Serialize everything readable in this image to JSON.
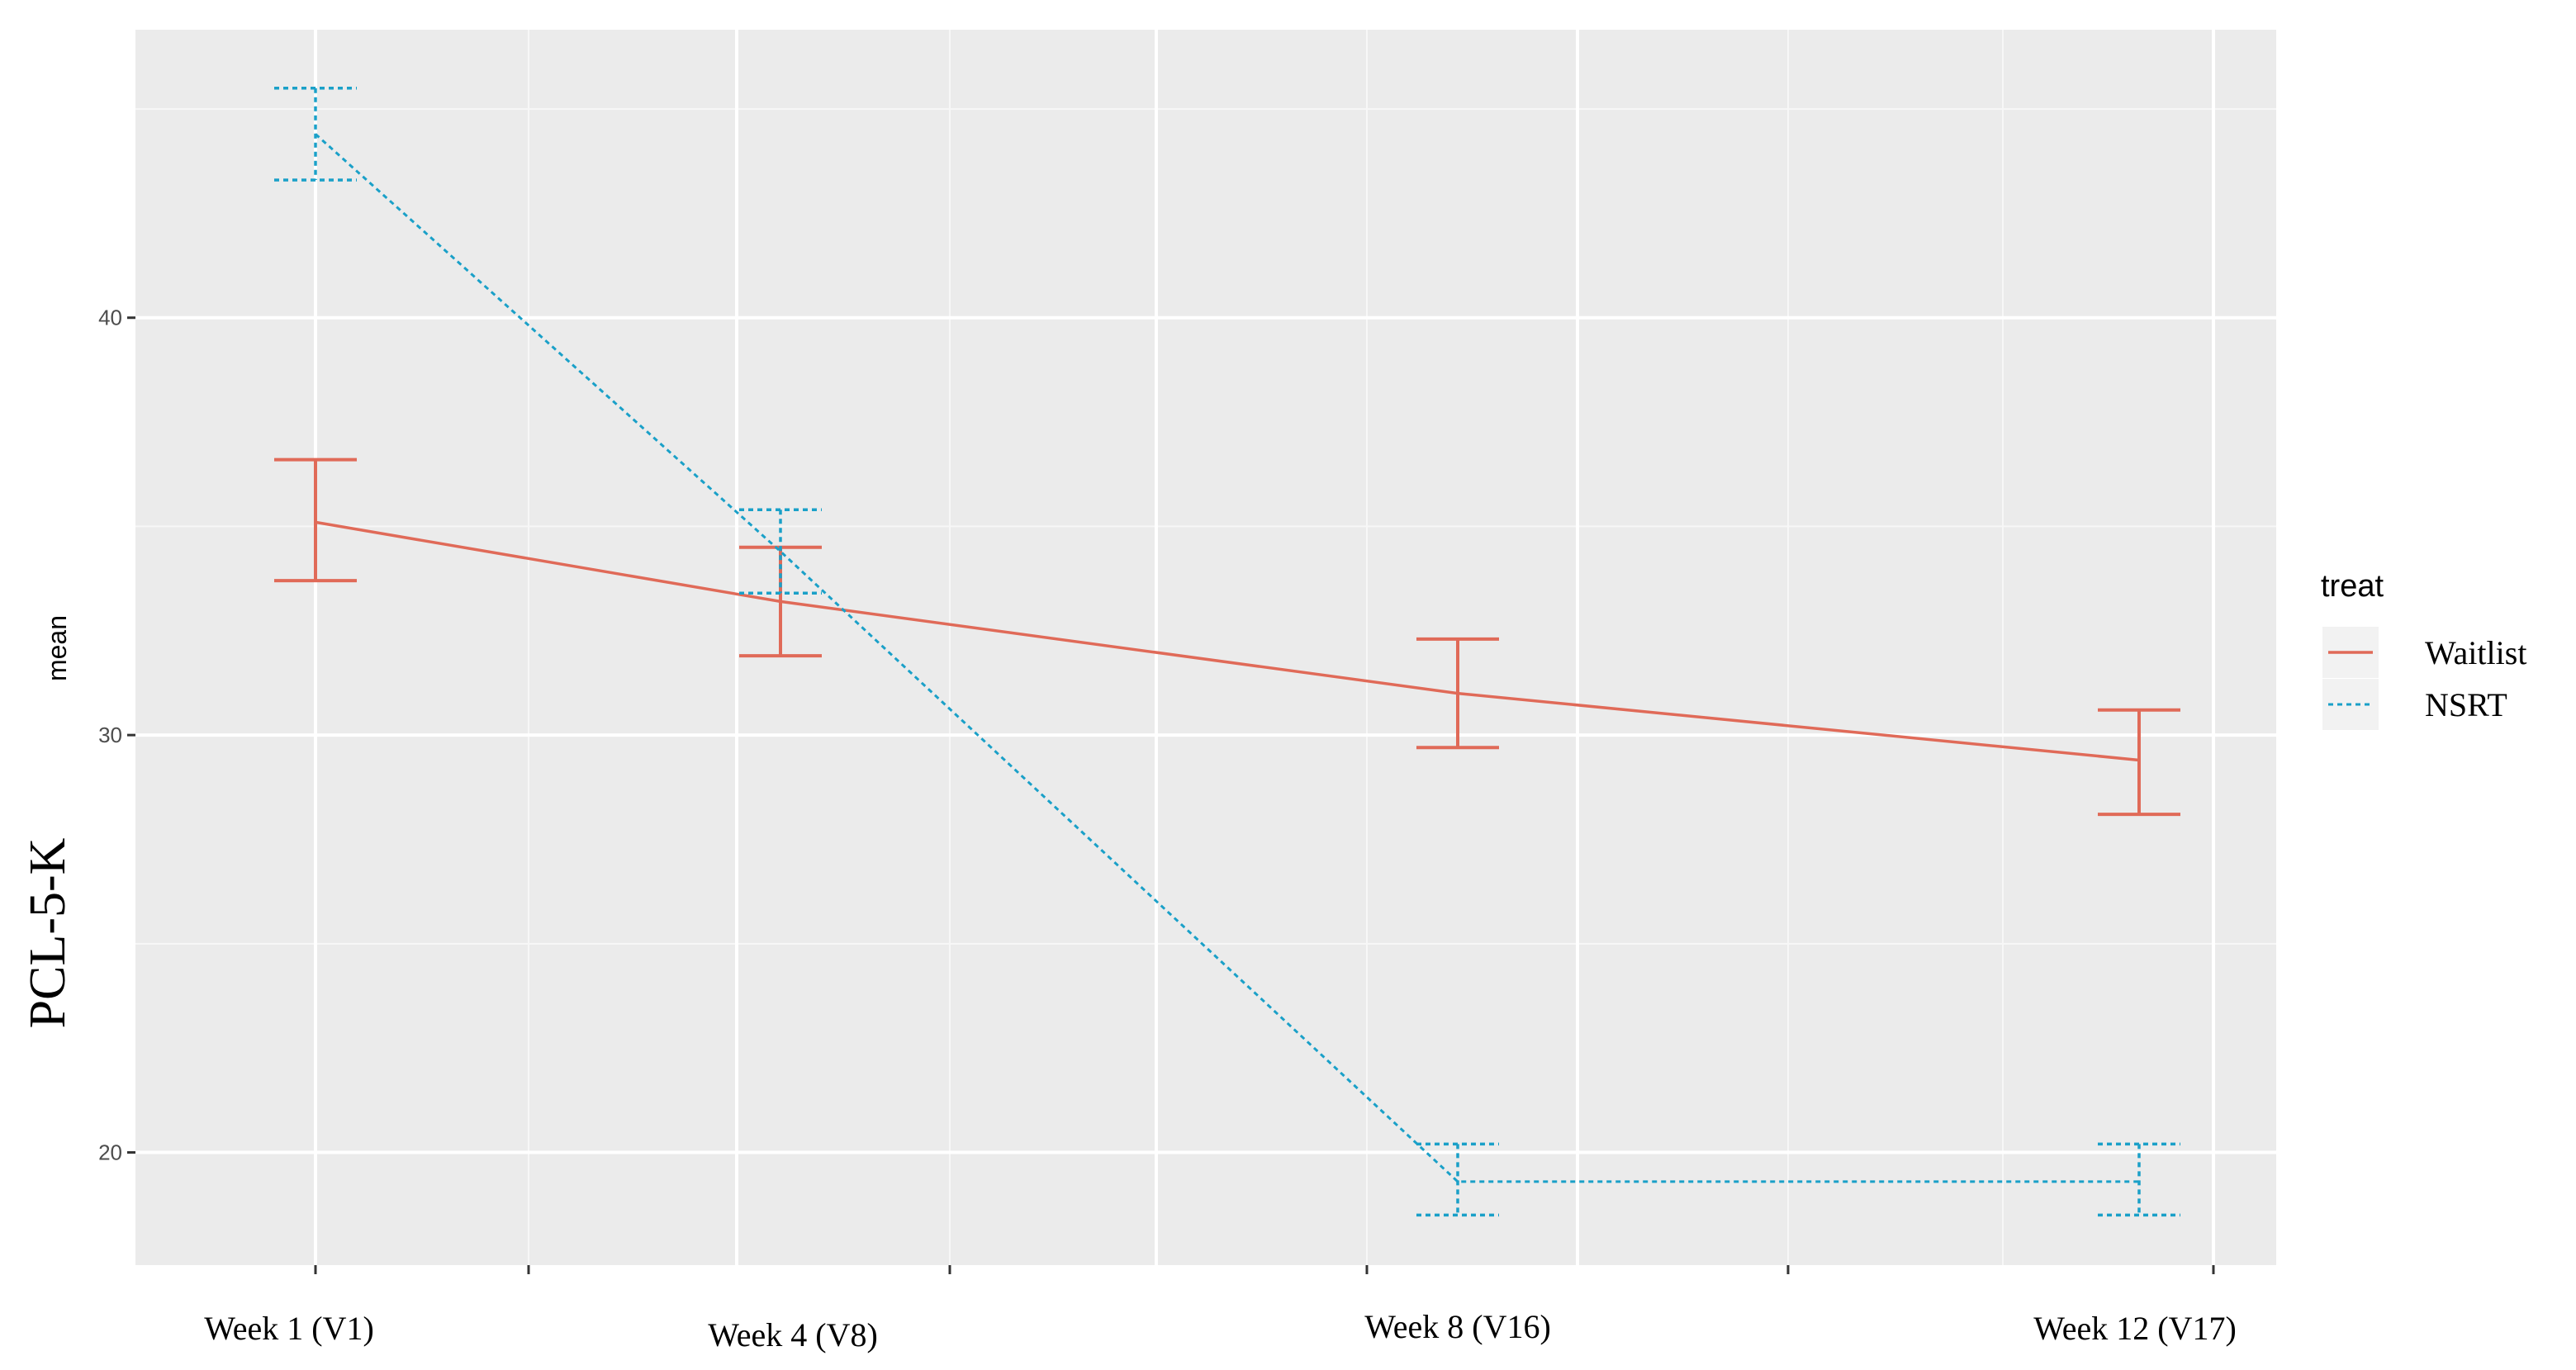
{
  "chart_data": {
    "type": "line",
    "categories": [
      "Week 1 (V1)",
      "Week 4 (V8)",
      "Week 8  (V16)",
      "Week 12 (V17)"
    ],
    "xlabel": "",
    "ylabel": "mean",
    "ylabel_overlay": "PCL-5-K",
    "ylim": [
      17.3,
      46.9
    ],
    "yticks": [
      20,
      30,
      40
    ],
    "grid": true,
    "legend": {
      "title": "treat",
      "position": "right",
      "entries": [
        "Waitlist",
        "NSRT"
      ]
    },
    "series": [
      {
        "name": "Waitlist",
        "color": "#e06a58",
        "dash": "solid",
        "values": [
          35.1,
          33.2,
          31.0,
          29.4
        ],
        "lower": [
          33.7,
          31.9,
          29.7,
          28.1
        ],
        "upper": [
          36.6,
          34.5,
          32.3,
          30.6
        ]
      },
      {
        "name": "NSRT",
        "color": "#1aa0c8",
        "dash": "dotted",
        "values": [
          44.4,
          34.4,
          19.3,
          19.3
        ],
        "lower": [
          43.3,
          33.4,
          18.5,
          18.5
        ],
        "upper": [
          45.5,
          35.4,
          20.2,
          20.2
        ]
      }
    ]
  }
}
